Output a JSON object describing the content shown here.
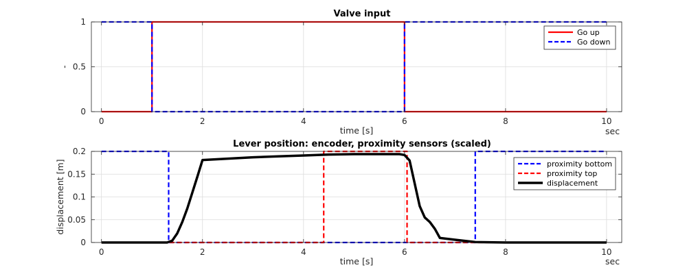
{
  "chart_data": [
    {
      "type": "line",
      "title": "Valve input",
      "xlabel": "time [s]",
      "ylabel": "-",
      "x_unit_label": "sec",
      "xlim": [
        -0.2,
        10.3
      ],
      "ylim": [
        0,
        1
      ],
      "xticks": [
        0,
        2,
        4,
        6,
        8,
        10
      ],
      "yticks": [
        0,
        0.5,
        1
      ],
      "xtick_labels": [
        "0",
        "2",
        "4",
        "6",
        "8",
        "10"
      ],
      "ytick_labels": [
        "0",
        "0.5",
        "1"
      ],
      "grid": true,
      "legend_position": "top-right",
      "series": [
        {
          "name": "Go up",
          "color": "#ff0000",
          "style": "solid",
          "x": [
            0,
            1,
            1,
            6,
            6,
            10
          ],
          "y": [
            0,
            0,
            1,
            1,
            0,
            0
          ]
        },
        {
          "name": "Go down",
          "color": "#0000ff",
          "style": "dashed",
          "x": [
            0,
            1,
            1,
            6,
            6,
            10
          ],
          "y": [
            1,
            1,
            0,
            0,
            1,
            1
          ]
        }
      ]
    },
    {
      "type": "line",
      "title": "Lever position: encoder, proximity sensors (scaled)",
      "xlabel": "time [s]",
      "ylabel": "displacement [m]",
      "x_unit_label": "sec",
      "xlim": [
        -0.2,
        10.3
      ],
      "ylim": [
        0,
        0.2
      ],
      "xticks": [
        0,
        2,
        4,
        6,
        8,
        10
      ],
      "yticks": [
        0,
        0.05,
        0.1,
        0.15,
        0.2
      ],
      "xtick_labels": [
        "0",
        "2",
        "4",
        "6",
        "8",
        "10"
      ],
      "ytick_labels": [
        "0",
        "0.05",
        "0.1",
        "0.15",
        "0.2"
      ],
      "grid": true,
      "legend_position": "top-right",
      "series": [
        {
          "name": "proximity bottom",
          "color": "#0000ff",
          "style": "dashed",
          "x": [
            0,
            1.33,
            1.33,
            7.4,
            7.4,
            10
          ],
          "y": [
            0.2,
            0.2,
            0,
            0,
            0.2,
            0.2
          ]
        },
        {
          "name": "proximity top",
          "color": "#ff0000",
          "style": "dashed",
          "x": [
            0,
            4.4,
            4.4,
            6.05,
            6.05,
            10
          ],
          "y": [
            0,
            0,
            0.2,
            0.2,
            0,
            0
          ]
        },
        {
          "name": "displacement",
          "color": "#000000",
          "style": "solid-thick",
          "x": [
            0,
            1.3,
            1.4,
            1.5,
            1.6,
            1.7,
            1.8,
            1.9,
            2.0,
            2.5,
            3.0,
            3.5,
            4.0,
            4.5,
            5.0,
            5.5,
            5.9,
            6.0,
            6.1,
            6.2,
            6.3,
            6.4,
            6.5,
            6.6,
            6.7,
            7.0,
            7.4,
            8.0,
            10
          ],
          "y": [
            0,
            0,
            0.004,
            0.02,
            0.045,
            0.075,
            0.11,
            0.145,
            0.181,
            0.184,
            0.187,
            0.189,
            0.191,
            0.193,
            0.194,
            0.194,
            0.194,
            0.192,
            0.18,
            0.13,
            0.08,
            0.055,
            0.045,
            0.03,
            0.01,
            0.006,
            0.001,
            0,
            0
          ]
        }
      ]
    }
  ]
}
